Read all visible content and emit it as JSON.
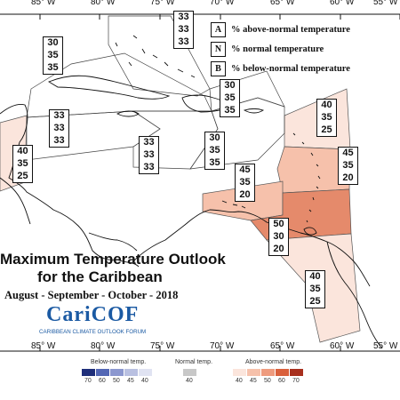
{
  "longitude_labels": [
    "85° W",
    "80° W",
    "75° W",
    "70° W",
    "65° W",
    "60° W",
    "55° W"
  ],
  "legend": {
    "items": [
      {
        "key": "A",
        "label": "% above-normal temperature"
      },
      {
        "key": "N",
        "label": "% normal temperature"
      },
      {
        "key": "B",
        "label": "% below-normal temperature"
      }
    ]
  },
  "title": {
    "line1": "Maximum Temperature Outlook",
    "line2": "for the Caribbean",
    "period": "August - September - October - 2018"
  },
  "logo": {
    "name": "CariCOF",
    "subtitle": "CARIBBEAN CLIMATE OUTLOOK FORUM"
  },
  "colorbar": {
    "below_title": "Below-normal temp.",
    "normal_title": "Normal temp.",
    "above_title": "Above-normal temp.",
    "below_ticks": [
      "70",
      "60",
      "50",
      "45",
      "40"
    ],
    "normal_ticks": [
      "40"
    ],
    "above_ticks": [
      "40",
      "45",
      "50",
      "60",
      "70"
    ],
    "below_colors": [
      "#1f2f7a",
      "#5367b5",
      "#8b97cf",
      "#b9c0e1",
      "#e0e3f2"
    ],
    "normal_colors": [
      "#c8c8c8"
    ],
    "above_colors": [
      "#fbe5dc",
      "#f6c1ab",
      "#ee9b7e",
      "#d9603c",
      "#a8301e"
    ]
  },
  "regions": [
    {
      "id": "bahamas-north",
      "values": [
        "33",
        "33",
        "33"
      ],
      "fill": "none"
    },
    {
      "id": "bahamas-west",
      "values": [
        "30",
        "35",
        "35"
      ],
      "fill": "none"
    },
    {
      "id": "cuba",
      "values": [
        "33",
        "33",
        "33"
      ],
      "fill": "none"
    },
    {
      "id": "belize-yucatan",
      "values": [
        "40",
        "35",
        "25"
      ],
      "fill": "#fbe5dc"
    },
    {
      "id": "jamaica-sea",
      "values": [
        "33",
        "33",
        "33"
      ],
      "fill": "none"
    },
    {
      "id": "hispaniola",
      "values": [
        "30",
        "35",
        "35"
      ],
      "fill": "none"
    },
    {
      "id": "turks-caicos",
      "values": [
        "30",
        "35",
        "35"
      ],
      "fill": "none"
    },
    {
      "id": "leeward-north",
      "values": [
        "40",
        "35",
        "25"
      ],
      "fill": "#fbe5dc"
    },
    {
      "id": "leeward-islands",
      "values": [
        "45",
        "35",
        "20"
      ],
      "fill": "#f6c1ab"
    },
    {
      "id": "aruba-curacao",
      "values": [
        "45",
        "35",
        "20"
      ],
      "fill": "#f6c1ab"
    },
    {
      "id": "trinidad-venezuela",
      "values": [
        "50",
        "30",
        "20"
      ],
      "fill": "#e58a6b"
    },
    {
      "id": "guianas",
      "values": [
        "40",
        "35",
        "25"
      ],
      "fill": "#fbe5dc"
    }
  ]
}
